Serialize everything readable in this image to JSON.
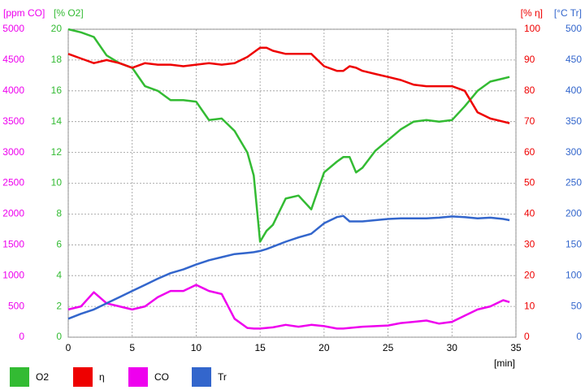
{
  "chart_data": {
    "type": "line",
    "xlabel": "[min]",
    "ylabel": "[% O2]",
    "y2label": "[% η]",
    "y3label": "[ppm CO]",
    "y4label": "[°C Tr]",
    "x": [
      0,
      1,
      2,
      3,
      4,
      5,
      6,
      7,
      8,
      9,
      10,
      11,
      12,
      13,
      14,
      14.5,
      15,
      15.5,
      16,
      17,
      18,
      19,
      20,
      21,
      21.5,
      22,
      22.5,
      23,
      24,
      25,
      26,
      27,
      28,
      29,
      30,
      31,
      32,
      33,
      34,
      34.5
    ],
    "xlim": [
      0,
      35
    ],
    "xticks": [
      0,
      5,
      10,
      15,
      20,
      25,
      30,
      35
    ],
    "ylim": [
      0,
      20
    ],
    "yticks": [
      0,
      2,
      4,
      6,
      8,
      10,
      12,
      14,
      16,
      18,
      20
    ],
    "y2lim": [
      0,
      100
    ],
    "y2ticks": [
      0,
      10,
      20,
      30,
      40,
      50,
      60,
      70,
      80,
      90,
      100
    ],
    "y3lim": [
      0,
      5000
    ],
    "y3ticks": [
      0,
      500,
      1000,
      1500,
      2000,
      2500,
      3000,
      3500,
      4000,
      4500,
      5000
    ],
    "y4lim": [
      0,
      500
    ],
    "y4ticks": [
      0,
      50,
      100,
      150,
      200,
      250,
      300,
      350,
      400,
      450,
      500
    ],
    "grid": true,
    "series": [
      {
        "name": "O2",
        "color": "#33bb33",
        "axis": "y",
        "values": [
          20,
          19.8,
          19.5,
          18.3,
          17.8,
          17.5,
          16.3,
          16,
          15.4,
          15.4,
          15.3,
          14.1,
          14.2,
          13.4,
          12,
          10.5,
          6.2,
          6.9,
          7.3,
          9,
          9.2,
          8.3,
          10.7,
          11.4,
          11.7,
          11.7,
          10.7,
          11,
          12.1,
          12.8,
          13.5,
          14,
          14.1,
          14,
          14.1,
          15,
          16,
          16.6,
          16.8,
          16.9
        ]
      },
      {
        "name": "η",
        "color": "#ee0000",
        "axis": "y2",
        "values": [
          92,
          90.5,
          89,
          90,
          89,
          87.5,
          89,
          88.5,
          88.5,
          88,
          88.5,
          89,
          88.5,
          89,
          91,
          92.5,
          94,
          94,
          93,
          92,
          92,
          92,
          88,
          86.5,
          86.5,
          88,
          87.5,
          86.5,
          85.5,
          84.5,
          83.5,
          82,
          81.5,
          81.5,
          81.5,
          80,
          73,
          71,
          70,
          69.5
        ]
      },
      {
        "name": "CO",
        "color": "#ee00ee",
        "axis": "y3",
        "values": [
          450,
          500,
          730,
          550,
          500,
          450,
          500,
          650,
          750,
          750,
          850,
          750,
          700,
          300,
          150,
          140,
          140,
          150,
          160,
          200,
          170,
          200,
          180,
          140,
          140,
          150,
          160,
          170,
          180,
          190,
          230,
          250,
          270,
          220,
          250,
          350,
          450,
          500,
          600,
          570
        ]
      },
      {
        "name": "Tr",
        "color": "#3366cc",
        "axis": "y4",
        "values": [
          30,
          38,
          45,
          55,
          65,
          75,
          85,
          95,
          104,
          110,
          118,
          125,
          130,
          135,
          137,
          138,
          140,
          143,
          147,
          155,
          162,
          168,
          185,
          195,
          197,
          188,
          188,
          188,
          190,
          192,
          193,
          193,
          193,
          194,
          196,
          195,
          193,
          194,
          192,
          190
        ]
      }
    ]
  }
}
